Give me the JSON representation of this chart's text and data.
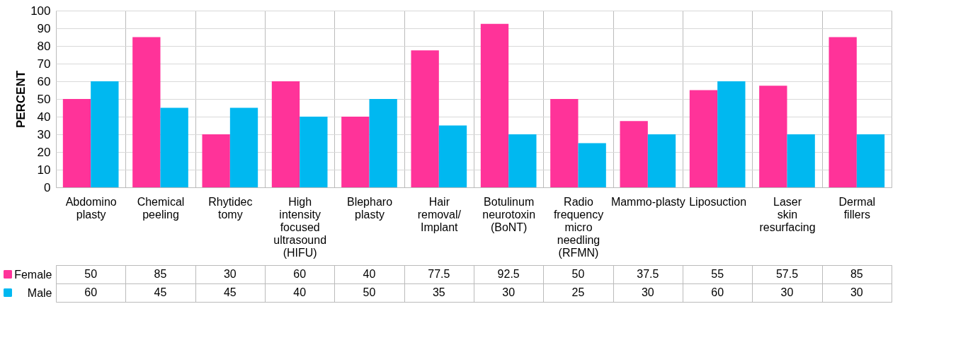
{
  "chart_data": {
    "type": "bar",
    "ylabel": "PERCENT",
    "categories": [
      "Abdomino plasty",
      "Chemical peeling",
      "Rhytidec tomy",
      "High intensity focused ultrasound (HIFU)",
      "Blepharo plasty",
      "Hair removal/ Implant",
      "Botulinum neurotoxin (BoNT)",
      "Radio frequency micro needling (RFMN)",
      "Mammo-plasty",
      "Liposuction",
      "Laser skin resurfacing",
      "Dermal fillers"
    ],
    "series": [
      {
        "name": "Female",
        "color": "#ff3399",
        "values": [
          50,
          85,
          30,
          60,
          40,
          77.5,
          92.5,
          50,
          37.5,
          55,
          57.5,
          85
        ]
      },
      {
        "name": "Male",
        "color": "#00b8f0",
        "values": [
          60,
          45,
          45,
          40,
          50,
          35,
          30,
          25,
          30,
          60,
          30,
          30
        ]
      }
    ],
    "ylim": [
      0,
      100
    ],
    "yticks": [
      0,
      10,
      20,
      30,
      40,
      50,
      60,
      70,
      80,
      90,
      100
    ],
    "grid": "y",
    "legend": "bottom",
    "data_labels": true
  }
}
